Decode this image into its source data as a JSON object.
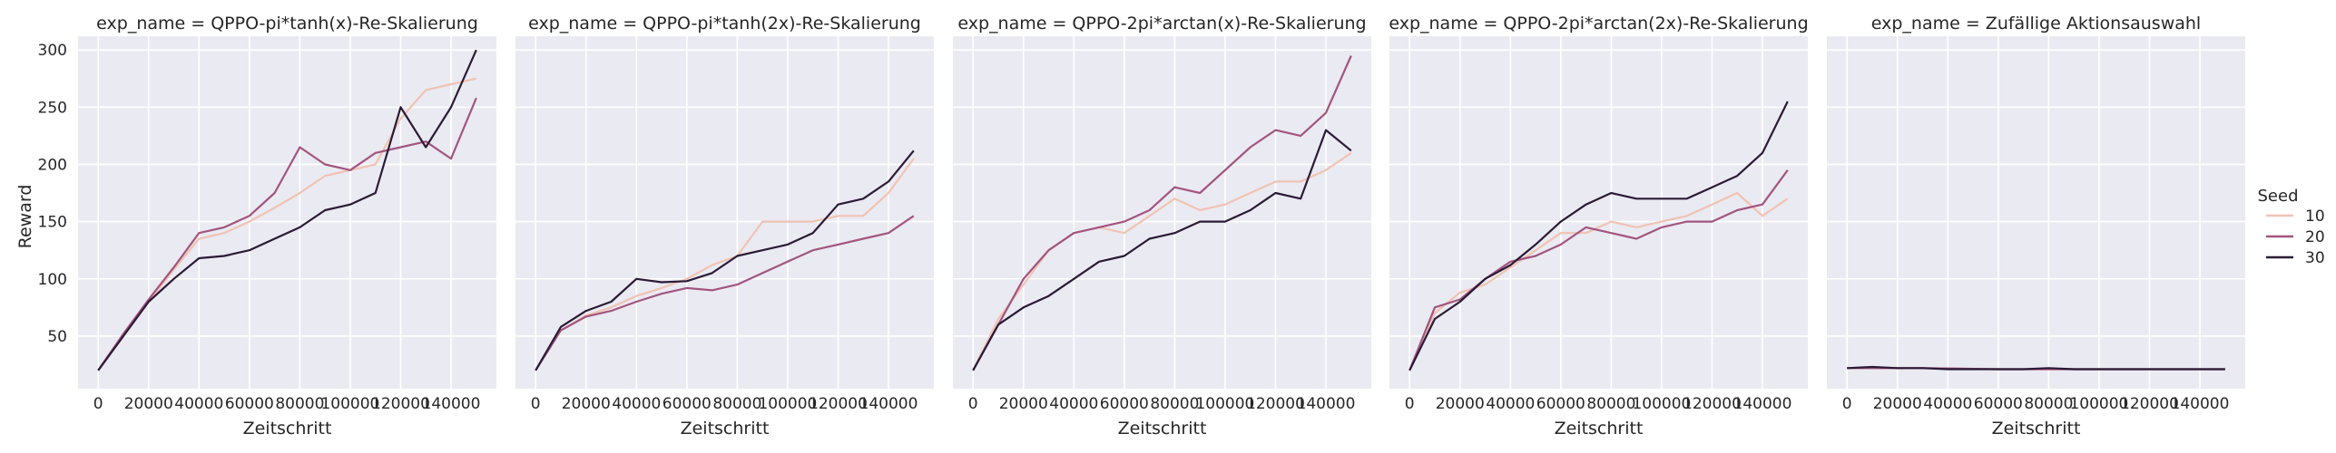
{
  "chart_data": {
    "type": "line",
    "ylabel": "Reward",
    "xlabel": "Zeitschritt",
    "xlim": [
      -8000,
      158000
    ],
    "ylim": [
      4,
      312
    ],
    "x_ticks": [
      0,
      20000,
      40000,
      60000,
      80000,
      100000,
      120000,
      140000
    ],
    "y_ticks": [
      50,
      100,
      150,
      200,
      250,
      300
    ],
    "grid": true,
    "legend": {
      "title": "Seed",
      "placement": "right",
      "entries": [
        {
          "label": "10",
          "color": "#f0c3b3"
        },
        {
          "label": "20",
          "color": "#a2557f"
        },
        {
          "label": "30",
          "color": "#2b1a36"
        }
      ]
    },
    "panels": [
      {
        "title": "exp_name = QPPO-pi*tanh(x)-Re-Skalierung",
        "series": [
          {
            "name": "10",
            "x": [
              0,
              10000,
              20000,
              30000,
              40000,
              50000,
              60000,
              70000,
              80000,
              90000,
              100000,
              110000,
              120000,
              130000,
              140000,
              150000
            ],
            "y": [
              20,
              50,
              80,
              108,
              135,
              140,
              150,
              162,
              175,
              190,
              195,
              200,
              240,
              265,
              270,
              275
            ]
          },
          {
            "name": "20",
            "x": [
              0,
              10000,
              20000,
              30000,
              40000,
              50000,
              60000,
              70000,
              80000,
              90000,
              100000,
              110000,
              120000,
              130000,
              140000,
              150000
            ],
            "y": [
              20,
              52,
              82,
              110,
              140,
              145,
              155,
              175,
              215,
              200,
              195,
              210,
              215,
              220,
              205,
              258
            ]
          },
          {
            "name": "30",
            "x": [
              0,
              10000,
              20000,
              30000,
              40000,
              50000,
              60000,
              70000,
              80000,
              90000,
              100000,
              110000,
              120000,
              130000,
              140000,
              150000
            ],
            "y": [
              20,
              50,
              80,
              100,
              118,
              120,
              125,
              135,
              145,
              160,
              165,
              175,
              250,
              215,
              250,
              300
            ]
          }
        ]
      },
      {
        "title": "exp_name = QPPO-pi*tanh(2x)-Re-Skalierung",
        "series": [
          {
            "name": "10",
            "x": [
              0,
              10000,
              20000,
              30000,
              40000,
              50000,
              60000,
              70000,
              80000,
              90000,
              100000,
              110000,
              120000,
              130000,
              140000,
              150000
            ],
            "y": [
              20,
              55,
              68,
              75,
              85,
              92,
              100,
              112,
              120,
              150,
              150,
              150,
              155,
              155,
              175,
              205
            ]
          },
          {
            "name": "20",
            "x": [
              0,
              10000,
              20000,
              30000,
              40000,
              50000,
              60000,
              70000,
              80000,
              90000,
              100000,
              110000,
              120000,
              130000,
              140000,
              150000
            ],
            "y": [
              20,
              55,
              67,
              72,
              80,
              87,
              92,
              90,
              95,
              105,
              115,
              125,
              130,
              135,
              140,
              155
            ]
          },
          {
            "name": "30",
            "x": [
              0,
              10000,
              20000,
              30000,
              40000,
              50000,
              60000,
              70000,
              80000,
              90000,
              100000,
              110000,
              120000,
              130000,
              140000,
              150000
            ],
            "y": [
              20,
              58,
              72,
              80,
              100,
              97,
              98,
              105,
              120,
              125,
              130,
              140,
              165,
              170,
              185,
              212
            ]
          }
        ]
      },
      {
        "title": "exp_name = QPPO-2pi*arctan(x)-Re-Skalierung",
        "series": [
          {
            "name": "10",
            "x": [
              0,
              10000,
              20000,
              30000,
              40000,
              50000,
              60000,
              70000,
              80000,
              90000,
              100000,
              110000,
              120000,
              130000,
              140000,
              150000
            ],
            "y": [
              20,
              65,
              95,
              125,
              140,
              145,
              140,
              155,
              170,
              160,
              165,
              175,
              185,
              185,
              195,
              210
            ]
          },
          {
            "name": "20",
            "x": [
              0,
              10000,
              20000,
              30000,
              40000,
              50000,
              60000,
              70000,
              80000,
              90000,
              100000,
              110000,
              120000,
              130000,
              140000,
              150000
            ],
            "y": [
              20,
              60,
              100,
              125,
              140,
              145,
              150,
              160,
              180,
              175,
              195,
              215,
              230,
              225,
              245,
              295
            ]
          },
          {
            "name": "30",
            "x": [
              0,
              10000,
              20000,
              30000,
              40000,
              50000,
              60000,
              70000,
              80000,
              90000,
              100000,
              110000,
              120000,
              130000,
              140000,
              150000
            ],
            "y": [
              20,
              60,
              75,
              85,
              100,
              115,
              120,
              135,
              140,
              150,
              150,
              160,
              175,
              170,
              230,
              212
            ]
          }
        ]
      },
      {
        "title": "exp_name = QPPO-2pi*arctan(2x)-Re-Skalierung",
        "series": [
          {
            "name": "10",
            "x": [
              0,
              10000,
              20000,
              30000,
              40000,
              50000,
              60000,
              70000,
              80000,
              90000,
              100000,
              110000,
              120000,
              130000,
              140000,
              150000
            ],
            "y": [
              20,
              70,
              88,
              95,
              110,
              125,
              140,
              140,
              150,
              145,
              150,
              155,
              165,
              175,
              155,
              170
            ]
          },
          {
            "name": "20",
            "x": [
              0,
              10000,
              20000,
              30000,
              40000,
              50000,
              60000,
              70000,
              80000,
              90000,
              100000,
              110000,
              120000,
              130000,
              140000,
              150000
            ],
            "y": [
              20,
              75,
              82,
              100,
              115,
              120,
              130,
              145,
              140,
              135,
              145,
              150,
              150,
              160,
              165,
              195
            ]
          },
          {
            "name": "30",
            "x": [
              0,
              10000,
              20000,
              30000,
              40000,
              50000,
              60000,
              70000,
              80000,
              90000,
              100000,
              110000,
              120000,
              130000,
              140000,
              150000
            ],
            "y": [
              20,
              65,
              80,
              100,
              112,
              130,
              150,
              165,
              175,
              170,
              170,
              170,
              180,
              190,
              210,
              255
            ]
          }
        ]
      },
      {
        "title": "exp_name = Zufällige Aktionsauswahl",
        "series": [
          {
            "name": "10",
            "x": [
              0,
              30000,
              60000,
              90000,
              120000,
              150000
            ],
            "y": [
              22,
              22,
              21,
              21,
              21,
              21
            ]
          },
          {
            "name": "20",
            "x": [
              0,
              30000,
              60000,
              90000,
              120000,
              150000
            ],
            "y": [
              22,
              22,
              21,
              21,
              21,
              21
            ]
          },
          {
            "name": "30",
            "x": [
              0,
              10000,
              20000,
              30000,
              40000,
              50000,
              60000,
              70000,
              80000,
              90000,
              100000,
              110000,
              120000,
              130000,
              140000,
              150000
            ],
            "y": [
              22,
              23,
              22,
              22,
              21,
              21,
              21,
              21,
              22,
              21,
              21,
              21,
              21,
              21,
              21,
              21
            ]
          }
        ]
      }
    ]
  }
}
